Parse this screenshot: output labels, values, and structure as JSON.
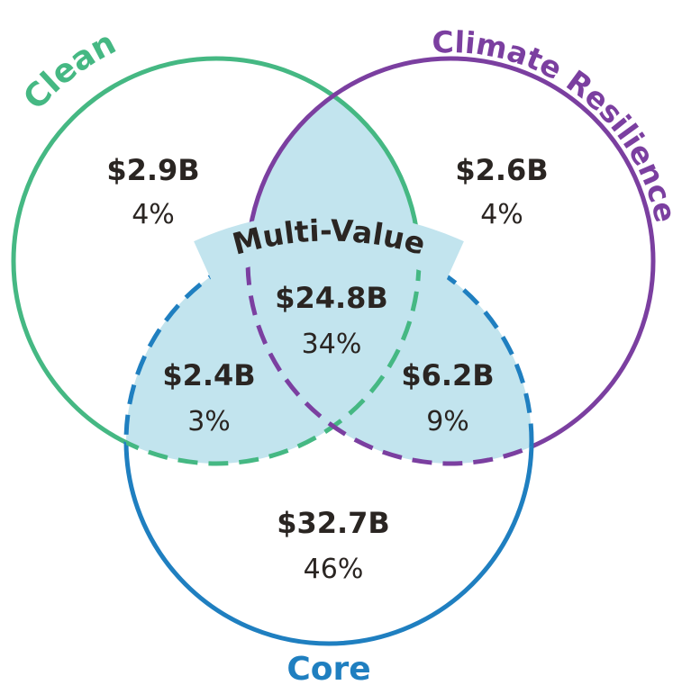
{
  "sets": [
    {
      "label": "Clean"
    },
    {
      "label": "Climate Resilience"
    },
    {
      "label": "Core"
    }
  ],
  "overlap_label": "Multi-Value",
  "regions": [
    {
      "amount": "$2.9B",
      "share": "4%"
    },
    {
      "amount": "$2.6B",
      "share": "4%"
    },
    {
      "amount": "$24.8B",
      "share": "34%"
    },
    {
      "amount": "$2.4B",
      "share": "3%"
    },
    {
      "amount": "$6.2B",
      "share": "9%"
    },
    {
      "amount": "$32.7B",
      "share": "46%"
    }
  ]
}
